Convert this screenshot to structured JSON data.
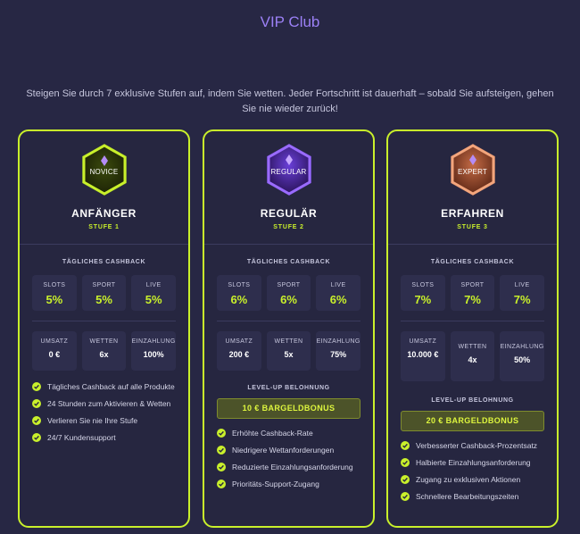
{
  "page": {
    "title": "VIP Club",
    "intro": "Steigen Sie durch 7 exklusive Stufen auf, indem Sie wetten. Jeder Fortschritt ist dauerhaft – sobald Sie aufsteigen, gehen Sie nie wieder zurück!"
  },
  "labels": {
    "cashback": "TÄGLICHES CASHBACK",
    "bonus": "LEVEL-UP BELOHNUNG",
    "slots": "SLOTS",
    "sport": "SPORT",
    "live": "LIVE",
    "turnover": "UMSATZ",
    "bets": "WETTEN",
    "deposit": "EINZAHLUNG"
  },
  "colors": {
    "accent": "#c9f02b",
    "title": "#9b80f5",
    "novice_badge": "#b6ef2a",
    "regular_badge": "#7b4df5",
    "expert_badge": "#ef8e63"
  },
  "tiers": [
    {
      "badge": "NOVICE",
      "badge_icon": "novice-hexagon-badge-icon",
      "name": "ANFÄNGER",
      "level": "STUFE 1",
      "cashback": {
        "slots": "5%",
        "sport": "5%",
        "live": "5%"
      },
      "requirements": {
        "turnover": "0 €",
        "bets": "6x",
        "deposit": "100%"
      },
      "bonus": "",
      "features": [
        "Tägliches Cashback auf alle Produkte",
        "24 Stunden zum Aktivieren & Wetten",
        "Verlieren Sie nie Ihre Stufe",
        "24/7 Kundensupport"
      ]
    },
    {
      "badge": "REGULAR",
      "badge_icon": "regular-hexagon-badge-icon",
      "name": "REGULÄR",
      "level": "STUFE 2",
      "cashback": {
        "slots": "6%",
        "sport": "6%",
        "live": "6%"
      },
      "requirements": {
        "turnover": "200 €",
        "bets": "5x",
        "deposit": "75%"
      },
      "bonus": "10 € BARGELDBONUS",
      "features": [
        "Erhöhte Cashback-Rate",
        "Niedrigere Wettanforderungen",
        "Reduzierte Einzahlungsanforderung",
        "Prioritäts-Support-Zugang"
      ]
    },
    {
      "badge": "EXPERT",
      "badge_icon": "expert-hexagon-badge-icon",
      "name": "ERFAHREN",
      "level": "STUFE 3",
      "cashback": {
        "slots": "7%",
        "sport": "7%",
        "live": "7%"
      },
      "requirements": {
        "turnover": "10.000 €",
        "bets": "4x",
        "deposit": "50%"
      },
      "bonus": "20 € BARGELDBONUS",
      "features": [
        "Verbesserter Cashback-Prozentsatz",
        "Halbierte Einzahlungsanforderung",
        "Zugang zu exklusiven Aktionen",
        "Schnellere Bearbeitungszeiten"
      ]
    }
  ]
}
